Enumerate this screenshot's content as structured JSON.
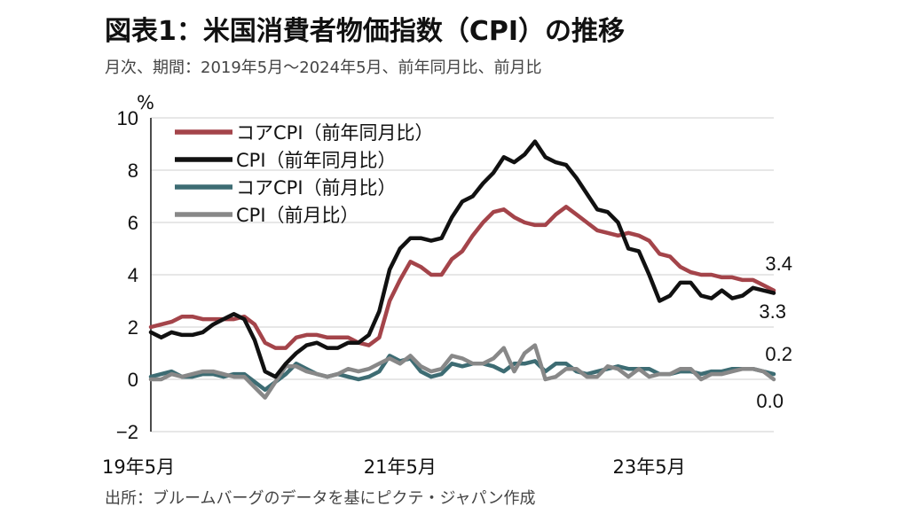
{
  "header": {
    "title": "図表1：米国消費者物価指数（CPI）の推移",
    "subtitle": "月次、期間：2019年5月～2024年5月、前年同月比、前月比"
  },
  "footer": {
    "source": "出所：ブルームバーグのデータを基にピクテ・ジャパン作成"
  },
  "chart_data": {
    "type": "line",
    "title": "図表1：米国消費者物価指数（CPI）の推移",
    "ylabel": "%",
    "ylim": [
      -2,
      10
    ],
    "yticks": [
      10,
      8,
      6,
      4,
      2,
      0,
      -2
    ],
    "x_ticks": [
      "19年5月",
      "21年5月",
      "23年5月"
    ],
    "x_range": [
      "2019-05",
      "2024-05"
    ],
    "grid": true,
    "legend_position": "top-left",
    "x": [
      "2019-05",
      "2019-06",
      "2019-07",
      "2019-08",
      "2019-09",
      "2019-10",
      "2019-11",
      "2019-12",
      "2020-01",
      "2020-02",
      "2020-03",
      "2020-04",
      "2020-05",
      "2020-06",
      "2020-07",
      "2020-08",
      "2020-09",
      "2020-10",
      "2020-11",
      "2020-12",
      "2021-01",
      "2021-02",
      "2021-03",
      "2021-04",
      "2021-05",
      "2021-06",
      "2021-07",
      "2021-08",
      "2021-09",
      "2021-10",
      "2021-11",
      "2021-12",
      "2022-01",
      "2022-02",
      "2022-03",
      "2022-04",
      "2022-05",
      "2022-06",
      "2022-07",
      "2022-08",
      "2022-09",
      "2022-10",
      "2022-11",
      "2022-12",
      "2023-01",
      "2023-02",
      "2023-03",
      "2023-04",
      "2023-05",
      "2023-06",
      "2023-07",
      "2023-08",
      "2023-09",
      "2023-10",
      "2023-11",
      "2023-12",
      "2024-01",
      "2024-02",
      "2024-03",
      "2024-04",
      "2024-05"
    ],
    "series": [
      {
        "name": "コアCPI（前年同月比）",
        "color": "#a4444a",
        "values": [
          2.0,
          2.1,
          2.2,
          2.4,
          2.4,
          2.3,
          2.3,
          2.3,
          2.3,
          2.4,
          2.1,
          1.4,
          1.2,
          1.2,
          1.6,
          1.7,
          1.7,
          1.6,
          1.6,
          1.6,
          1.4,
          1.3,
          1.6,
          3.0,
          3.8,
          4.5,
          4.3,
          4.0,
          4.0,
          4.6,
          4.9,
          5.5,
          6.0,
          6.4,
          6.5,
          6.2,
          6.0,
          5.9,
          5.9,
          6.3,
          6.6,
          6.3,
          6.0,
          5.7,
          5.6,
          5.5,
          5.6,
          5.5,
          5.3,
          4.8,
          4.7,
          4.3,
          4.1,
          4.0,
          4.0,
          3.9,
          3.9,
          3.8,
          3.8,
          3.6,
          3.4
        ]
      },
      {
        "name": "CPI（前年同月比）",
        "color": "#111111",
        "values": [
          1.8,
          1.6,
          1.8,
          1.7,
          1.7,
          1.8,
          2.1,
          2.3,
          2.5,
          2.3,
          1.5,
          0.3,
          0.1,
          0.6,
          1.0,
          1.3,
          1.4,
          1.2,
          1.2,
          1.4,
          1.4,
          1.7,
          2.6,
          4.2,
          5.0,
          5.4,
          5.4,
          5.3,
          5.4,
          6.2,
          6.8,
          7.0,
          7.5,
          7.9,
          8.5,
          8.3,
          8.6,
          9.1,
          8.5,
          8.3,
          8.2,
          7.7,
          7.1,
          6.5,
          6.4,
          6.0,
          5.0,
          4.9,
          4.0,
          3.0,
          3.2,
          3.7,
          3.7,
          3.2,
          3.1,
          3.4,
          3.1,
          3.2,
          3.5,
          3.4,
          3.3
        ]
      },
      {
        "name": "コアCPI（前月比）",
        "color": "#3d6c73",
        "values": [
          0.1,
          0.2,
          0.3,
          0.1,
          0.1,
          0.2,
          0.2,
          0.1,
          0.2,
          0.2,
          -0.1,
          -0.4,
          -0.1,
          0.2,
          0.6,
          0.4,
          0.2,
          0.1,
          0.2,
          0.1,
          0.0,
          0.1,
          0.3,
          0.9,
          0.7,
          0.8,
          0.3,
          0.1,
          0.2,
          0.6,
          0.5,
          0.6,
          0.6,
          0.5,
          0.3,
          0.6,
          0.6,
          0.7,
          0.3,
          0.6,
          0.6,
          0.3,
          0.2,
          0.3,
          0.4,
          0.5,
          0.4,
          0.4,
          0.4,
          0.2,
          0.2,
          0.3,
          0.3,
          0.2,
          0.3,
          0.3,
          0.4,
          0.4,
          0.4,
          0.3,
          0.2
        ]
      },
      {
        "name": "CPI（前月比）",
        "color": "#888888",
        "values": [
          0.0,
          0.0,
          0.2,
          0.1,
          0.2,
          0.3,
          0.3,
          0.2,
          0.1,
          0.1,
          -0.3,
          -0.7,
          -0.1,
          0.5,
          0.5,
          0.3,
          0.2,
          0.1,
          0.2,
          0.4,
          0.3,
          0.4,
          0.6,
          0.8,
          0.6,
          0.9,
          0.5,
          0.3,
          0.4,
          0.9,
          0.8,
          0.6,
          0.6,
          0.8,
          1.2,
          0.3,
          1.0,
          1.3,
          0.0,
          0.1,
          0.4,
          0.4,
          0.1,
          0.1,
          0.5,
          0.4,
          0.1,
          0.4,
          0.1,
          0.2,
          0.2,
          0.4,
          0.4,
          0.0,
          0.2,
          0.2,
          0.3,
          0.4,
          0.4,
          0.3,
          0.0
        ]
      }
    ],
    "annotations": [
      {
        "text": "3.4",
        "series": "コアCPI（前年同月比）"
      },
      {
        "text": "3.3",
        "series": "CPI（前年同月比）"
      },
      {
        "text": "0.2",
        "series": "コアCPI（前月比）"
      },
      {
        "text": "0.0",
        "series": "CPI（前月比）"
      }
    ]
  }
}
